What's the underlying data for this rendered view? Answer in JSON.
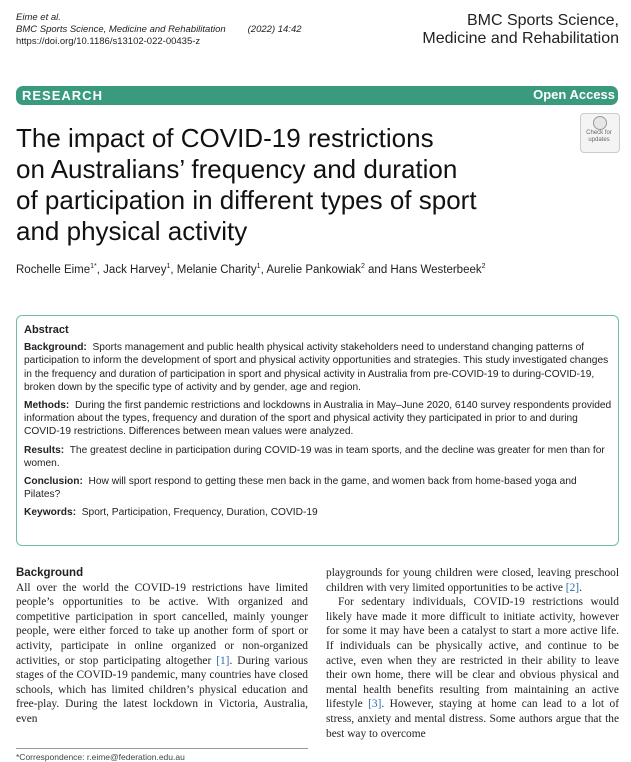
{
  "header": {
    "authors_short": "Eime et al.",
    "journal_citation": "BMC Sports Science, Medicine and Rehabilitation",
    "year_volume": "(2022) 14:42",
    "doi": "https://doi.org/10.1186/s13102-022-00435-z",
    "journal_name_line1": "BMC Sports Science,",
    "journal_name_line2": "Medicine and Rehabilitation"
  },
  "band": {
    "article_type": "RESEARCH",
    "access": "Open Access",
    "color": "#3a9a7d"
  },
  "badge": {
    "label_line1": "Check for",
    "label_line2": "updates"
  },
  "title": {
    "line1": "The impact of COVID-19 restrictions",
    "line2": "on Australians’ frequency and duration",
    "line3": "of participation in different types of sport",
    "line4": "and physical activity"
  },
  "authors": [
    {
      "name": "Rochelle Eime",
      "sup": "1*"
    },
    {
      "name": "Jack Harvey",
      "sup": "1"
    },
    {
      "name": "Melanie Charity",
      "sup": "1"
    },
    {
      "name": "Aurelie Pankowiak",
      "sup": "2"
    },
    {
      "name": "Hans Westerbeek",
      "sup": "2"
    }
  ],
  "author_sep": ", ",
  "author_and": " and ",
  "abstract": {
    "heading": "Abstract",
    "background_label": "Background:",
    "background_text": "Sports management and public health physical activity stakeholders need to understand changing patterns of participation to inform the development of sport and physical activity opportunities and strategies. This study investigated changes in the frequency and duration of participation in sport and physical activity in Australia from pre-COVID-19 to during-COVID-19, broken down by the specific type of activity and by gender, age and region.",
    "methods_label": "Methods:",
    "methods_text": "During the first pandemic restrictions and lockdowns in Australia in May–June 2020, 6140 survey respondents provided information about the types, frequency and duration of the sport and physical activity they participated in prior to and during COVID-19 restrictions. Differences between mean values were analyzed.",
    "results_label": "Results:",
    "results_text": "The greatest decline in participation during COVID-19 was in team sports, and the decline was greater for men than for women.",
    "conclusion_label": "Conclusion:",
    "conclusion_text": "How will sport respond to getting these men back in the game, and women back from home-based yoga and Pilates?",
    "keywords_label": "Keywords:",
    "keywords_text": "Sport, Participation, Frequency, Duration, COVID-19",
    "border_color": "#6fbfa8"
  },
  "body": {
    "background_heading": "Background",
    "left_p1_a": "All over the world the COVID-19 restrictions have limited people’s opportunities to be active. With organized and competitive participation in sport cancelled, mainly younger people, were either forced to take up another form of sport or activity, participate in online organized or non-organized activities, or stop participating altogether ",
    "left_ref1": "[1]",
    "left_p1_b": ". During various stages of the COVID-19 pandemic, many countries have closed schools, which has limited children’s physical education and free-play. During the latest lockdown in Victoria, Australia, even",
    "right_p1_a": "playgrounds for young children were closed, leaving preschool children with very limited opportunities to be active ",
    "right_ref2": "[2]",
    "right_p1_b": ".",
    "right_p2_a": "For sedentary individuals, COVID-19 restrictions would likely have made it more difficult to initiate activity, however for some it may have been a catalyst to start a more active life. If individuals can be physically active, and continue to be active, even when they are restricted in their ability to leave their own home, there will be clear and obvious physical and mental health benefits resulting from maintaining an active lifestyle ",
    "right_ref3": "[3]",
    "right_p2_b": ". However, staying at home can lead to a lot of stress, anxiety and mental distress. Some authors argue that the best way to overcome"
  },
  "footnote": "*Correspondence:  r.eime@federation.edu.au"
}
